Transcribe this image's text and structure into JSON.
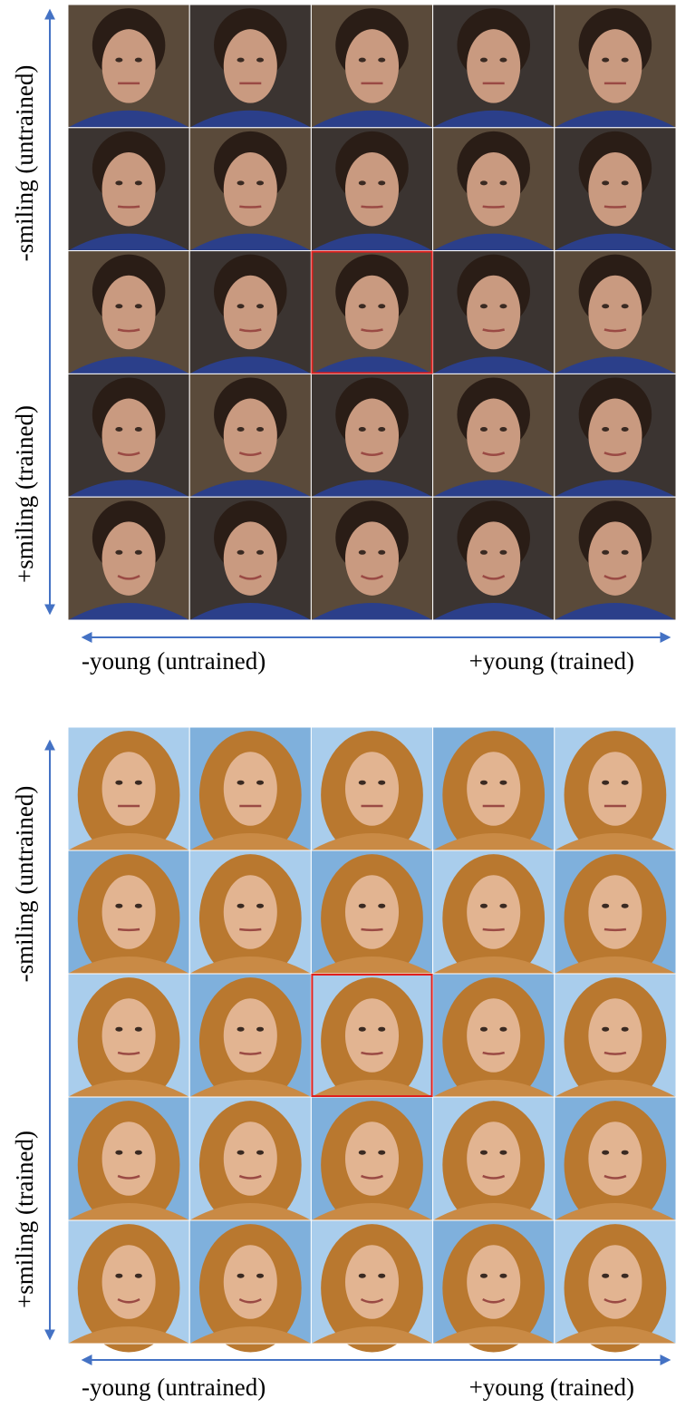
{
  "panels": [
    {
      "y_top_label": "-smiling (untrained)",
      "y_bottom_label": "+smiling (trained)",
      "x_left_label": "-young (untrained)",
      "x_right_label": "+young (trained)"
    },
    {
      "y_top_label": "-smiling (untrained)",
      "y_bottom_label": "+smiling (trained)",
      "x_left_label": "-young (untrained)",
      "x_right_label": "+young (trained)"
    }
  ]
}
